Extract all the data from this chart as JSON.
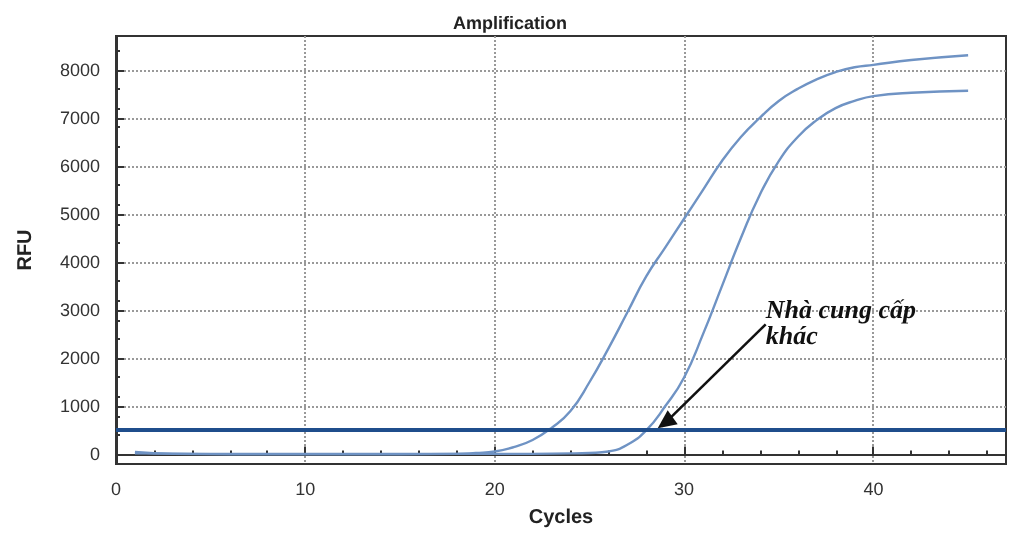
{
  "chart_data": {
    "type": "line",
    "title": "Amplification",
    "xlabel": "Cycles",
    "ylabel": "RFU",
    "xlim": [
      0,
      47
    ],
    "xticks": [
      0,
      10,
      20,
      30,
      40
    ],
    "ylim": [
      -200,
      8700
    ],
    "yticks": [
      0,
      1000,
      2000,
      3000,
      4000,
      5000,
      6000,
      7000,
      8000
    ],
    "grid": true,
    "marker": "none",
    "line_style": "solid",
    "series": [
      {
        "color": "#6f93c4",
        "x": [
          1,
          3,
          6,
          10,
          15,
          18,
          19,
          20,
          21,
          22,
          23,
          24,
          25,
          26,
          27,
          28,
          29,
          30,
          31,
          32,
          33,
          34,
          35,
          36,
          37,
          38,
          39,
          40,
          42,
          45
        ],
        "values": [
          50,
          10,
          0,
          0,
          0,
          10,
          30,
          60,
          150,
          300,
          550,
          900,
          1500,
          2200,
          2950,
          3700,
          4300,
          4900,
          5500,
          6100,
          6600,
          7000,
          7350,
          7600,
          7800,
          7950,
          8050,
          8100,
          8200,
          8300
        ]
      },
      {
        "color": "#6f93c4",
        "x": [
          1,
          5,
          10,
          15,
          20,
          24,
          25,
          26,
          27,
          28,
          29,
          30,
          31,
          32,
          33,
          34,
          35,
          36,
          37,
          38,
          39,
          40,
          42,
          45
        ],
        "values": [
          20,
          10,
          10,
          10,
          10,
          20,
          30,
          60,
          200,
          500,
          1000,
          1600,
          2500,
          3500,
          4500,
          5400,
          6100,
          6600,
          6950,
          7200,
          7350,
          7450,
          7520,
          7560
        ]
      }
    ],
    "ref_lines": [
      {
        "axis": "y",
        "value": 500,
        "color": "#1f4e8c"
      }
    ],
    "annotations": [
      {
        "text": "Nhà cung cấp khác",
        "x": 28.5,
        "y": 500
      }
    ]
  }
}
